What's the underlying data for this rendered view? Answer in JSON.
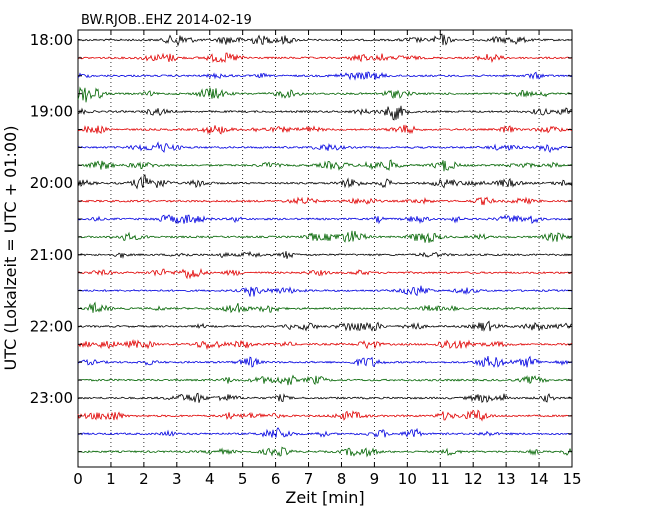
{
  "chart_data": {
    "type": "line",
    "title": "BW.RJOB..EHZ 2014-02-19",
    "xlabel": "Zeit  [min]",
    "ylabel": "UTC (Lokalzeit = UTC + 01:00)",
    "xlim": [
      0,
      15
    ],
    "x_ticks": [
      "0",
      "1",
      "2",
      "3",
      "4",
      "5",
      "6",
      "7",
      "8",
      "9",
      "10",
      "11",
      "12",
      "13",
      "14",
      "15"
    ],
    "y_ticks": [
      "18:00",
      "19:00",
      "20:00",
      "21:00",
      "22:00",
      "23:00"
    ],
    "rows_per_hour": 4,
    "row_count": 24,
    "trace_colors": [
      "#000000",
      "#e00000",
      "#0000e0",
      "#006400"
    ],
    "grid": "vertical dotted"
  }
}
